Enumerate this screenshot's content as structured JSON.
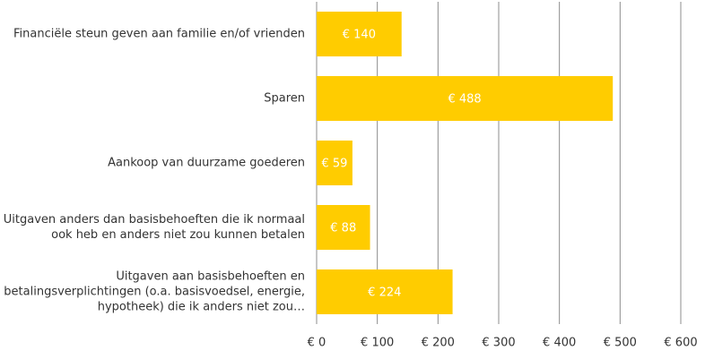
{
  "chart_data": {
    "type": "bar",
    "orientation": "horizontal",
    "categories": [
      "Financiële steun geven aan familie en/of vrienden",
      "Sparen",
      "Aankoop van duurzame goederen",
      "Uitgaven anders dan basisbehoeften die ik normaal ook heb en anders niet zou kunnen betalen",
      "Uitgaven aan basisbehoeften en betalingsverplichtingen  (o.a. basisvoedsel, energie, hypotheek) die ik anders niet zou…"
    ],
    "values": [
      140,
      488,
      59,
      88,
      224
    ],
    "value_labels": [
      "€ 140",
      "€ 488",
      "€ 59",
      "€ 88",
      "€ 224"
    ],
    "color": "#ffcc00",
    "xlim": [
      0,
      600
    ],
    "xticks": [
      {
        "value": 0,
        "label": "€ 0"
      },
      {
        "value": 100,
        "label": "€ 100"
      },
      {
        "value": 200,
        "label": "€ 200"
      },
      {
        "value": 300,
        "label": "€ 300"
      },
      {
        "value": 400,
        "label": "€ 400"
      },
      {
        "value": 500,
        "label": "€ 500"
      },
      {
        "value": 600,
        "label": "€ 600"
      }
    ],
    "grid": true
  }
}
